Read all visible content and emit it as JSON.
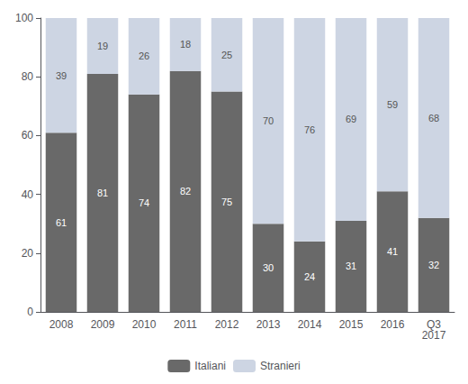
{
  "chart_data": {
    "type": "bar",
    "stacked": true,
    "data_labels": true,
    "grid": false,
    "legend": "bottom",
    "categories": [
      "2008",
      "2009",
      "2010",
      "2011",
      "2012",
      "2013",
      "2014",
      "2015",
      "2016",
      "Q3\n2017"
    ],
    "series": [
      {
        "name": "Italiani",
        "color": "#696969",
        "values": [
          61,
          81,
          74,
          82,
          75,
          30,
          24,
          31,
          41,
          32
        ]
      },
      {
        "name": "Stranieri",
        "color": "#cdd5e3",
        "values": [
          39,
          19,
          26,
          18,
          25,
          70,
          76,
          69,
          59,
          68
        ]
      }
    ],
    "ylim": [
      0,
      100
    ],
    "yticks": [
      0,
      20,
      40,
      60,
      80,
      100
    ]
  }
}
